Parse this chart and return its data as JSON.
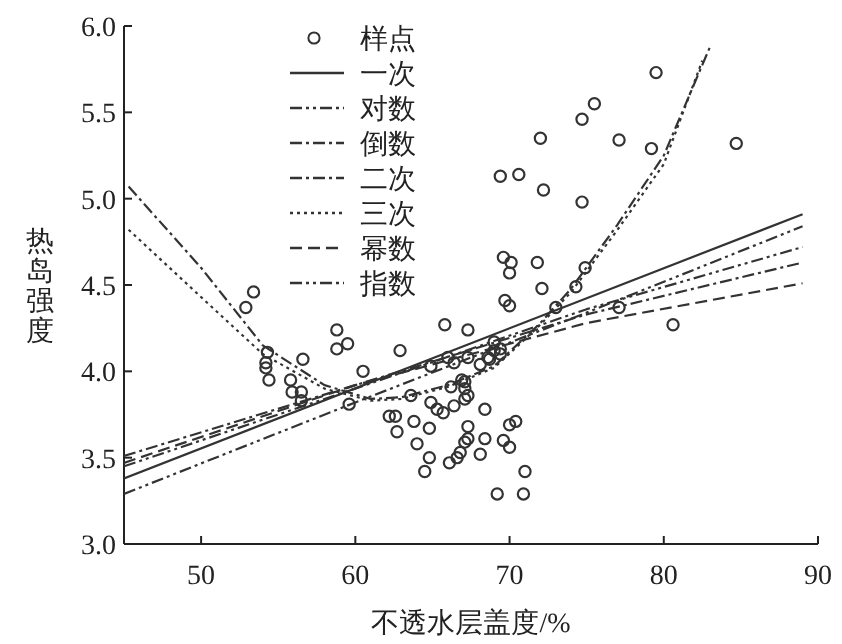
{
  "chart_data": {
    "type": "scatter",
    "xlabel": "不透水层盖度/%",
    "ylabel": "热岛强度",
    "xlim": [
      45,
      90
    ],
    "ylim": [
      3,
      6
    ],
    "xticks": [
      50,
      60,
      70,
      80,
      90
    ],
    "yticks": [
      {
        "value": 3,
        "label": "3.0"
      },
      {
        "value": 3.5,
        "label": "3.5"
      },
      {
        "value": 4,
        "label": "4.0"
      },
      {
        "value": 4.5,
        "label": "4.5"
      },
      {
        "value": 5,
        "label": "5.0"
      },
      {
        "value": 5.5,
        "label": "5.5"
      },
      {
        "value": 6,
        "label": "6.0"
      }
    ],
    "legend": "top left",
    "grid": false,
    "series": [
      {
        "name": "样点",
        "marker": "circle",
        "color": "#333333",
        "x": [
          79.5,
          75.5,
          74.7,
          72.0,
          77.1,
          79.2,
          84.7,
          69.4,
          70.6,
          72.2,
          74.7,
          69.6,
          70.1,
          70.0,
          71.8,
          74.9,
          72.1,
          74.3,
          69.7,
          70.0,
          77.1,
          73.0,
          80.6,
          52.9,
          53.4,
          58.8,
          58.8,
          59.5,
          54.3,
          54.2,
          54.2,
          54.4,
          56.6,
          55.8,
          55.9,
          56.5,
          56.5,
          59.6,
          60.5,
          62.9,
          65.8,
          67.3,
          64.9,
          66.0,
          66.4,
          67.3,
          68.1,
          68.6,
          69.0,
          69.4,
          63.6,
          64.9,
          65.3,
          65.7,
          66.2,
          66.9,
          67.3,
          66.4,
          62.2,
          62.6,
          62.7,
          63.8,
          64.0,
          64.8,
          64.5,
          64.8,
          66.1,
          66.6,
          66.8,
          67.3,
          67.3,
          67.1,
          68.1,
          68.4,
          68.4,
          69.2,
          69.6,
          70.0,
          70.4,
          70.0,
          71.0,
          70.9,
          67.1,
          67.1,
          67.1,
          68.7,
          69.0,
          69.4
        ],
        "values": [
          5.73,
          5.55,
          5.46,
          5.35,
          5.34,
          5.29,
          5.32,
          5.13,
          5.14,
          5.05,
          4.98,
          4.66,
          4.63,
          4.57,
          4.63,
          4.6,
          4.48,
          4.49,
          4.41,
          4.38,
          4.37,
          4.37,
          4.27,
          4.37,
          4.46,
          4.24,
          4.13,
          4.16,
          4.11,
          4.05,
          4.02,
          3.95,
          4.07,
          3.95,
          3.88,
          3.88,
          3.83,
          3.81,
          4.0,
          4.12,
          4.27,
          4.24,
          4.03,
          4.08,
          4.05,
          4.08,
          4.04,
          4.08,
          4.17,
          4.1,
          3.86,
          3.82,
          3.78,
          3.76,
          3.91,
          3.95,
          3.86,
          3.8,
          3.74,
          3.74,
          3.65,
          3.71,
          3.58,
          3.67,
          3.42,
          3.5,
          3.47,
          3.5,
          3.53,
          3.68,
          3.61,
          3.59,
          3.52,
          3.61,
          3.78,
          3.29,
          3.6,
          3.69,
          3.71,
          3.56,
          3.42,
          3.29,
          3.94,
          3.9,
          3.84,
          4.07,
          4.12,
          4.13
        ]
      },
      {
        "name": "一次",
        "type": "line",
        "line_style": "solid",
        "color": "#333333",
        "x": [
          45,
          89
        ],
        "values": [
          3.38,
          4.91
        ]
      },
      {
        "name": "对数",
        "type": "line",
        "line_style": "dashdotdot",
        "color": "#333333",
        "x": [
          45,
          60,
          75,
          89
        ],
        "values": [
          3.45,
          3.9,
          4.36,
          4.72
        ]
      },
      {
        "name": "倒数",
        "type": "line",
        "line_style": "dashdot",
        "color": "#333333",
        "x": [
          45,
          60,
          75,
          89
        ],
        "values": [
          3.51,
          3.92,
          4.33,
          4.63
        ]
      },
      {
        "name": "二次",
        "type": "line",
        "line_style": "dashdot",
        "color": "#333333",
        "x": [
          45.3,
          50,
          54,
          58,
          61,
          63,
          66,
          69,
          72,
          74,
          77,
          80,
          83
        ],
        "values": [
          5.07,
          4.6,
          4.15,
          3.92,
          3.84,
          3.85,
          3.92,
          4.03,
          4.28,
          4.48,
          4.85,
          5.25,
          5.88
        ]
      },
      {
        "name": "三次",
        "type": "line",
        "line_style": "dotted",
        "color": "#333333",
        "x": [
          45.3,
          50,
          54,
          58,
          61,
          63,
          66,
          69,
          72,
          74,
          77,
          80,
          82.5
        ],
        "values": [
          4.82,
          4.43,
          4.1,
          3.9,
          3.83,
          3.84,
          3.91,
          4.02,
          4.27,
          4.46,
          4.82,
          5.2,
          5.8
        ]
      },
      {
        "name": "幂数",
        "type": "line",
        "line_style": "dashed",
        "color": "#333333",
        "x": [
          45,
          60,
          75,
          89
        ],
        "values": [
          3.47,
          3.92,
          4.28,
          4.51
        ]
      },
      {
        "name": "指数",
        "type": "line",
        "line_style": "dashdotdot",
        "color": "#333333",
        "x": [
          45,
          60,
          75,
          89
        ],
        "values": [
          3.29,
          3.82,
          4.34,
          4.84
        ]
      }
    ]
  }
}
